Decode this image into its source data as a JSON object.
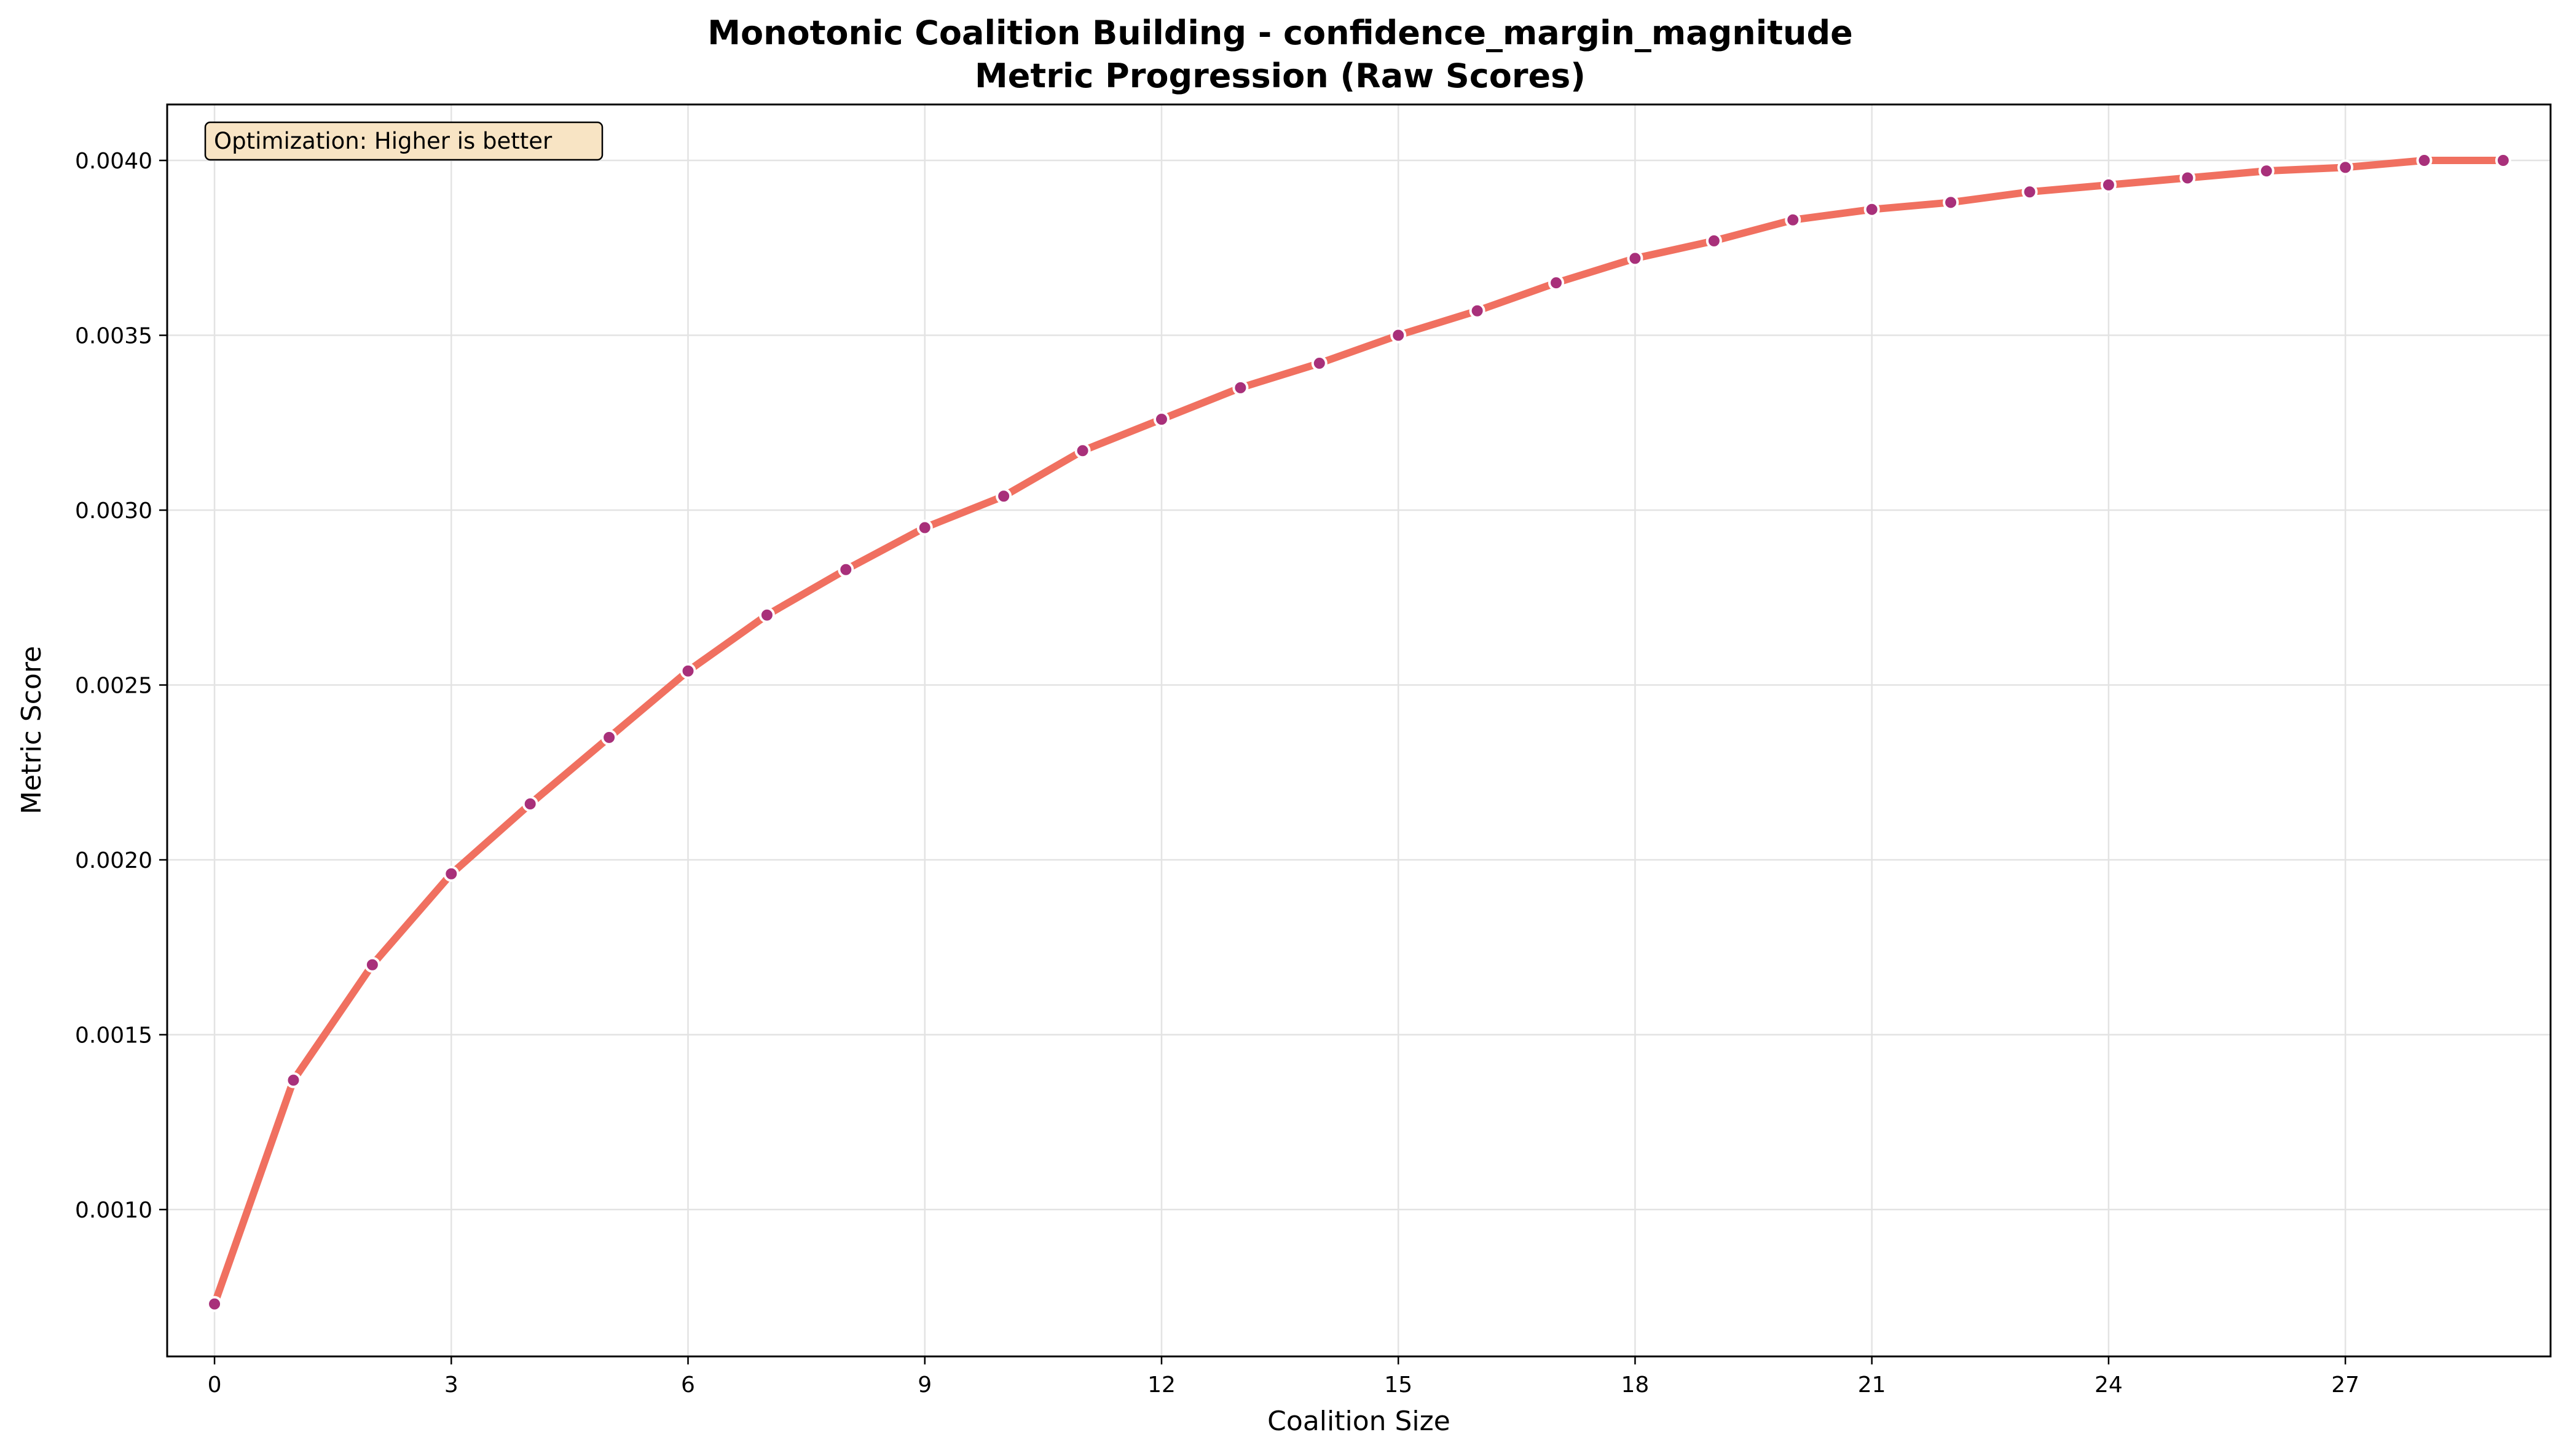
{
  "chart_data": {
    "type": "line",
    "title": "Monotonic Coalition Building - confidence_margin_magnitude",
    "subtitle": "Metric Progression (Raw Scores)",
    "xlabel": "Coalition Size",
    "ylabel": "Metric Score",
    "xlim": [
      -0.6,
      29.6
    ],
    "ylim": [
      0.00058,
      0.00416
    ],
    "xticks": [
      0,
      3,
      6,
      9,
      12,
      15,
      18,
      21,
      24,
      27
    ],
    "xtick_labels": [
      "0",
      "3",
      "6",
      "9",
      "12",
      "15",
      "18",
      "21",
      "24",
      "27"
    ],
    "yticks": [
      0.001,
      0.0015,
      0.002,
      0.0025,
      0.003,
      0.0035,
      0.004
    ],
    "ytick_labels": [
      "0.0010",
      "0.0015",
      "0.0020",
      "0.0025",
      "0.0030",
      "0.0035",
      "0.0040"
    ],
    "grid": true,
    "line_color": "#f07060",
    "marker_color": "#a8307a",
    "annotation": {
      "text": "Optimization: Higher is better",
      "box_color": "#f8e4c4",
      "placement": "top-left"
    },
    "x": [
      0,
      1,
      2,
      3,
      4,
      5,
      6,
      7,
      8,
      9,
      10,
      11,
      12,
      13,
      14,
      15,
      16,
      17,
      18,
      19,
      20,
      21,
      22,
      23,
      24,
      25,
      26,
      27,
      28,
      29
    ],
    "y": [
      0.00073,
      0.00137,
      0.0017,
      0.00196,
      0.00216,
      0.00235,
      0.00254,
      0.0027,
      0.00283,
      0.00295,
      0.00304,
      0.00317,
      0.00326,
      0.00335,
      0.00342,
      0.0035,
      0.00357,
      0.00365,
      0.00372,
      0.00377,
      0.00383,
      0.00386,
      0.00388,
      0.00391,
      0.00393,
      0.00395,
      0.00397,
      0.00398,
      0.004,
      0.004
    ]
  }
}
